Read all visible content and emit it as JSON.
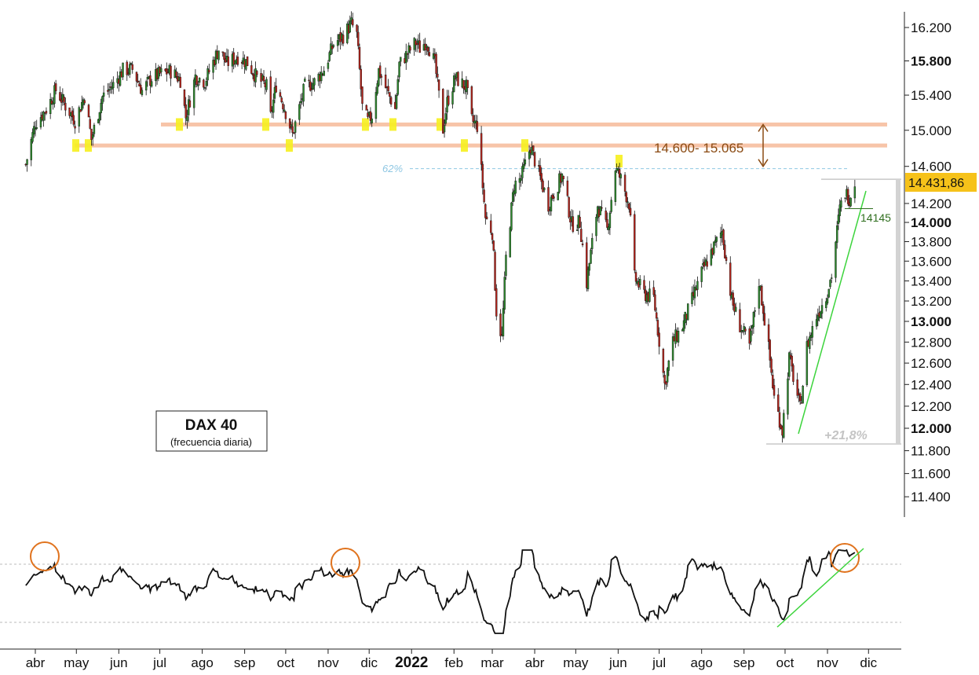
{
  "chart_data": {
    "type": "candlestick",
    "title": "DAX 40",
    "subtitle": "(frecuencia diaria)",
    "y_axis": {
      "ticks": [
        11400,
        11600,
        11800,
        12000,
        12200,
        12400,
        12600,
        12800,
        13000,
        13200,
        13400,
        13600,
        13800,
        14000,
        14200,
        14600,
        15000,
        15400,
        15800,
        16200
      ],
      "tick_labels": [
        "11.400",
        "11.600",
        "11.800",
        "12.000",
        "12.200",
        "12.400",
        "12.600",
        "12.800",
        "13.000",
        "13.200",
        "13.400",
        "13.600",
        "13.800",
        "14.000",
        "14.200",
        "14.600",
        "15.000",
        "15.400",
        "15.800",
        "16.200"
      ],
      "bold_labels": [
        "12.000",
        "13.000",
        "14.000",
        "15.800"
      ],
      "scale": "log"
    },
    "x_axis": {
      "labels": [
        "abr",
        "may",
        "jun",
        "jul",
        "ago",
        "sep",
        "oct",
        "nov",
        "dic",
        "2022",
        "feb",
        "mar",
        "abr",
        "may",
        "jun",
        "jul",
        "ago",
        "sep",
        "oct",
        "nov",
        "dic"
      ]
    },
    "last_price_label": "14.431,86",
    "last_price": 14431.86,
    "resistance_zone": {
      "label": "14.600- 15.065",
      "low": 14600,
      "high": 15065
    },
    "resistance_lines": [
      14830,
      15065
    ],
    "fib_level": {
      "label": "62%",
      "value": 14575
    },
    "support_label": "14145",
    "support_value": 14145,
    "rally_label": "+21,8%",
    "rally_from": 11860,
    "rally_to": 14460,
    "series": [
      {
        "d": "2021-03-25",
        "c": 14620
      },
      {
        "d": "2021-04-01",
        "c": 15080
      },
      {
        "d": "2021-04-09",
        "c": 15240
      },
      {
        "d": "2021-04-16",
        "c": 15460
      },
      {
        "d": "2021-04-23",
        "c": 15280
      },
      {
        "d": "2021-04-30",
        "c": 15110
      },
      {
        "d": "2021-05-07",
        "c": 15390
      },
      {
        "d": "2021-05-12",
        "c": 14900
      },
      {
        "d": "2021-05-20",
        "c": 15380
      },
      {
        "d": "2021-05-28",
        "c": 15520
      },
      {
        "d": "2021-06-04",
        "c": 15690
      },
      {
        "d": "2021-06-11",
        "c": 15700
      },
      {
        "d": "2021-06-18",
        "c": 15450
      },
      {
        "d": "2021-06-25",
        "c": 15600
      },
      {
        "d": "2021-07-02",
        "c": 15650
      },
      {
        "d": "2021-07-09",
        "c": 15680
      },
      {
        "d": "2021-07-16",
        "c": 15580
      },
      {
        "d": "2021-07-20",
        "c": 15150
      },
      {
        "d": "2021-07-27",
        "c": 15620
      },
      {
        "d": "2021-08-03",
        "c": 15560
      },
      {
        "d": "2021-08-13",
        "c": 15940
      },
      {
        "d": "2021-08-19",
        "c": 15770
      },
      {
        "d": "2021-08-27",
        "c": 15850
      },
      {
        "d": "2021-09-03",
        "c": 15780
      },
      {
        "d": "2021-09-10",
        "c": 15600
      },
      {
        "d": "2021-09-17",
        "c": 15500
      },
      {
        "d": "2021-09-20",
        "c": 15150
      },
      {
        "d": "2021-09-24",
        "c": 15520
      },
      {
        "d": "2021-09-30",
        "c": 15260
      },
      {
        "d": "2021-10-06",
        "c": 14950
      },
      {
        "d": "2021-10-15",
        "c": 15500
      },
      {
        "d": "2021-10-22",
        "c": 15550
      },
      {
        "d": "2021-10-29",
        "c": 15700
      },
      {
        "d": "2021-11-05",
        "c": 16000
      },
      {
        "d": "2021-11-12",
        "c": 16100
      },
      {
        "d": "2021-11-18",
        "c": 16250
      },
      {
        "d": "2021-11-22",
        "c": 16110
      },
      {
        "d": "2021-11-26",
        "c": 15260
      },
      {
        "d": "2021-11-30",
        "c": 15100
      },
      {
        "d": "2021-12-03",
        "c": 15170
      },
      {
        "d": "2021-12-08",
        "c": 15690
      },
      {
        "d": "2021-12-14",
        "c": 15450
      },
      {
        "d": "2021-12-20",
        "c": 15240
      },
      {
        "d": "2021-12-23",
        "c": 15760
      },
      {
        "d": "2022-01-04",
        "c": 16020
      },
      {
        "d": "2022-01-07",
        "c": 15950
      },
      {
        "d": "2022-01-12",
        "c": 16040
      },
      {
        "d": "2022-01-18",
        "c": 15770
      },
      {
        "d": "2022-01-24",
        "c": 15010
      },
      {
        "d": "2022-01-27",
        "c": 15320
      },
      {
        "d": "2022-02-02",
        "c": 15600
      },
      {
        "d": "2022-02-10",
        "c": 15490
      },
      {
        "d": "2022-02-14",
        "c": 15110
      },
      {
        "d": "2022-02-18",
        "c": 15050
      },
      {
        "d": "2022-02-24",
        "c": 14050
      },
      {
        "d": "2022-03-01",
        "c": 13900
      },
      {
        "d": "2022-03-04",
        "c": 13100
      },
      {
        "d": "2022-03-08",
        "c": 12840
      },
      {
        "d": "2022-03-11",
        "c": 13630
      },
      {
        "d": "2022-03-17",
        "c": 14400
      },
      {
        "d": "2022-03-22",
        "c": 14470
      },
      {
        "d": "2022-03-29",
        "c": 14820
      },
      {
        "d": "2022-04-04",
        "c": 14520
      },
      {
        "d": "2022-04-11",
        "c": 14190
      },
      {
        "d": "2022-04-21",
        "c": 14500
      },
      {
        "d": "2022-04-28",
        "c": 13980
      },
      {
        "d": "2022-05-04",
        "c": 14000
      },
      {
        "d": "2022-05-09",
        "c": 13380
      },
      {
        "d": "2022-05-17",
        "c": 14180
      },
      {
        "d": "2022-05-24",
        "c": 13920
      },
      {
        "d": "2022-05-30",
        "c": 14580
      },
      {
        "d": "2022-06-03",
        "c": 14460
      },
      {
        "d": "2022-06-09",
        "c": 14200
      },
      {
        "d": "2022-06-13",
        "c": 13430
      },
      {
        "d": "2022-06-20",
        "c": 13270
      },
      {
        "d": "2022-06-27",
        "c": 13230
      },
      {
        "d": "2022-07-05",
        "c": 12400
      },
      {
        "d": "2022-07-11",
        "c": 12800
      },
      {
        "d": "2022-07-18",
        "c": 12950
      },
      {
        "d": "2022-07-25",
        "c": 13210
      },
      {
        "d": "2022-08-01",
        "c": 13480
      },
      {
        "d": "2022-08-08",
        "c": 13690
      },
      {
        "d": "2022-08-16",
        "c": 13910
      },
      {
        "d": "2022-08-23",
        "c": 13200
      },
      {
        "d": "2022-08-29",
        "c": 12960
      },
      {
        "d": "2022-09-05",
        "c": 12760
      },
      {
        "d": "2022-09-12",
        "c": 13400
      },
      {
        "d": "2022-09-19",
        "c": 12740
      },
      {
        "d": "2022-09-23",
        "c": 12280
      },
      {
        "d": "2022-09-29",
        "c": 11980
      },
      {
        "d": "2022-10-04",
        "c": 12650
      },
      {
        "d": "2022-10-12",
        "c": 12180
      },
      {
        "d": "2022-10-17",
        "c": 12760
      },
      {
        "d": "2022-10-24",
        "c": 13050
      },
      {
        "d": "2022-10-31",
        "c": 13250
      },
      {
        "d": "2022-11-04",
        "c": 13460
      },
      {
        "d": "2022-11-10",
        "c": 14140
      },
      {
        "d": "2022-11-14",
        "c": 14320
      },
      {
        "d": "2022-11-17",
        "c": 14260
      },
      {
        "d": "2022-11-21",
        "c": 14430
      }
    ]
  }
}
